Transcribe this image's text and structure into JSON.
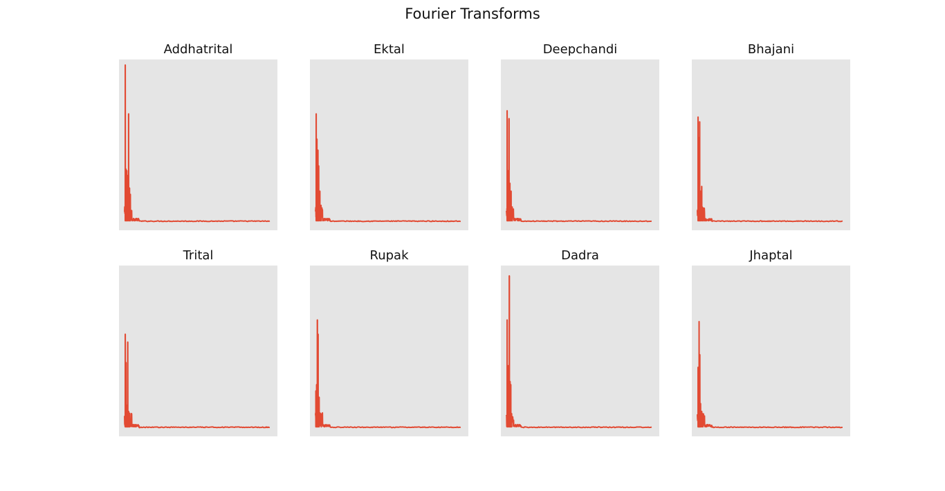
{
  "figure": {
    "title": "Fourier Transforms"
  },
  "style": {
    "axes_bg": "#e5e5e5",
    "line_color": "#e24a33",
    "text_color": "#111111"
  },
  "chart_data": [
    {
      "type": "line",
      "title": "Addhatrital",
      "xlabel": "",
      "ylabel": "",
      "ticks_visible": false,
      "ylim": [
        0,
        1
      ],
      "peaks": [
        {
          "x": 0.005,
          "y": 1.0
        },
        {
          "x": 0.01,
          "y": 0.34
        },
        {
          "x": 0.015,
          "y": 0.33
        },
        {
          "x": 0.02,
          "y": 0.3
        },
        {
          "x": 0.028,
          "y": 0.69
        },
        {
          "x": 0.034,
          "y": 0.22
        },
        {
          "x": 0.04,
          "y": 0.18
        }
      ],
      "noise_floor": 0.012
    },
    {
      "type": "line",
      "title": "Ektal",
      "xlabel": "",
      "ylabel": "",
      "ticks_visible": false,
      "ylim": [
        0,
        1
      ],
      "peaks": [
        {
          "x": 0.005,
          "y": 0.69
        },
        {
          "x": 0.01,
          "y": 0.53
        },
        {
          "x": 0.017,
          "y": 0.46
        },
        {
          "x": 0.022,
          "y": 0.36
        },
        {
          "x": 0.03,
          "y": 0.2
        },
        {
          "x": 0.038,
          "y": 0.11
        }
      ],
      "noise_floor": 0.012
    },
    {
      "type": "line",
      "title": "Deepchandi",
      "xlabel": "",
      "ylabel": "",
      "ticks_visible": false,
      "ylim": [
        0,
        1
      ],
      "peaks": [
        {
          "x": 0.005,
          "y": 0.71
        },
        {
          "x": 0.012,
          "y": 0.33
        },
        {
          "x": 0.018,
          "y": 0.66
        },
        {
          "x": 0.024,
          "y": 0.25
        },
        {
          "x": 0.032,
          "y": 0.2
        },
        {
          "x": 0.04,
          "y": 0.1
        }
      ],
      "noise_floor": 0.012
    },
    {
      "type": "line",
      "title": "Bhajani",
      "xlabel": "",
      "ylabel": "",
      "ticks_visible": false,
      "ylim": [
        0,
        1
      ],
      "peaks": [
        {
          "x": 0.005,
          "y": 0.67
        },
        {
          "x": 0.01,
          "y": 0.54
        },
        {
          "x": 0.016,
          "y": 0.64
        },
        {
          "x": 0.022,
          "y": 0.2
        },
        {
          "x": 0.03,
          "y": 0.23
        },
        {
          "x": 0.038,
          "y": 0.08
        }
      ],
      "noise_floor": 0.012
    },
    {
      "type": "line",
      "title": "Trital",
      "xlabel": "",
      "ylabel": "",
      "ticks_visible": false,
      "ylim": [
        0,
        1
      ],
      "peaks": [
        {
          "x": 0.005,
          "y": 0.6
        },
        {
          "x": 0.01,
          "y": 0.42
        },
        {
          "x": 0.015,
          "y": 0.15
        },
        {
          "x": 0.022,
          "y": 0.55
        },
        {
          "x": 0.028,
          "y": 0.11
        },
        {
          "x": 0.035,
          "y": 0.06
        }
      ],
      "noise_floor": 0.012
    },
    {
      "type": "line",
      "title": "Rupak",
      "xlabel": "",
      "ylabel": "",
      "ticks_visible": false,
      "ylim": [
        0,
        1
      ],
      "peaks": [
        {
          "x": 0.003,
          "y": 0.24
        },
        {
          "x": 0.008,
          "y": 0.28
        },
        {
          "x": 0.013,
          "y": 0.69
        },
        {
          "x": 0.018,
          "y": 0.6
        },
        {
          "x": 0.025,
          "y": 0.2
        },
        {
          "x": 0.04,
          "y": 0.03
        }
      ],
      "noise_floor": 0.012
    },
    {
      "type": "line",
      "title": "Dadra",
      "xlabel": "",
      "ylabel": "",
      "ticks_visible": false,
      "ylim": [
        0,
        1
      ],
      "peaks": [
        {
          "x": 0.005,
          "y": 0.69
        },
        {
          "x": 0.012,
          "y": 0.4
        },
        {
          "x": 0.02,
          "y": 0.97
        },
        {
          "x": 0.025,
          "y": 0.3
        },
        {
          "x": 0.03,
          "y": 0.28
        },
        {
          "x": 0.036,
          "y": 0.08
        }
      ],
      "noise_floor": 0.012
    },
    {
      "type": "line",
      "title": "Jhaptal",
      "xlabel": "",
      "ylabel": "",
      "ticks_visible": false,
      "ylim": [
        0,
        1
      ],
      "peaks": [
        {
          "x": 0.005,
          "y": 0.39
        },
        {
          "x": 0.012,
          "y": 0.68
        },
        {
          "x": 0.017,
          "y": 0.47
        },
        {
          "x": 0.022,
          "y": 0.16
        },
        {
          "x": 0.03,
          "y": 0.11
        },
        {
          "x": 0.038,
          "y": 0.04
        }
      ],
      "noise_floor": 0.012
    }
  ]
}
